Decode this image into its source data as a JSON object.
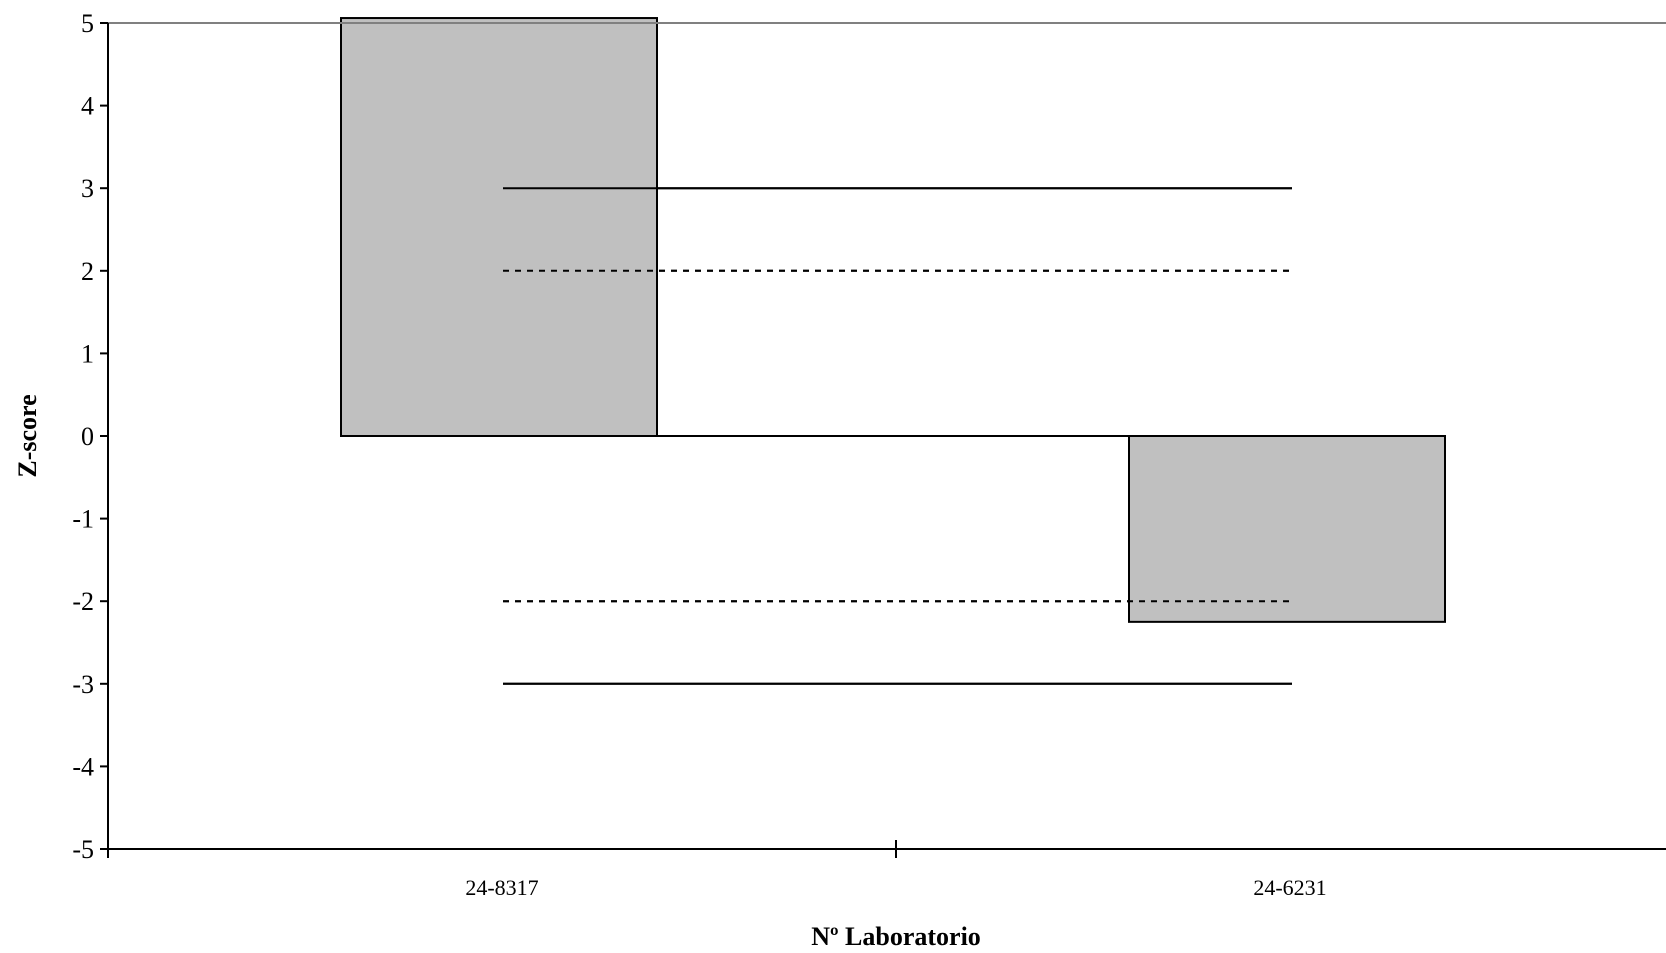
{
  "chart_data": {
    "type": "bar",
    "categories": [
      "24-8317",
      "24-6231"
    ],
    "values": [
      5.2,
      -2.25
    ],
    "xlabel": "Nº Laboratorio",
    "ylabel": "Z-score",
    "ylim": [
      -5,
      5
    ],
    "yticks": [
      "5",
      "4",
      "3",
      "2",
      "1",
      "0",
      "-1",
      "-2",
      "-3",
      "-4",
      "-5"
    ],
    "reference_lines": [
      {
        "y": 3,
        "style": "solid"
      },
      {
        "y": 2,
        "style": "dotted"
      },
      {
        "y": 0,
        "style": "solid"
      },
      {
        "y": -2,
        "style": "dotted"
      },
      {
        "y": -3,
        "style": "solid"
      }
    ],
    "bar_color": "#c0c0c0",
    "grid": false
  }
}
